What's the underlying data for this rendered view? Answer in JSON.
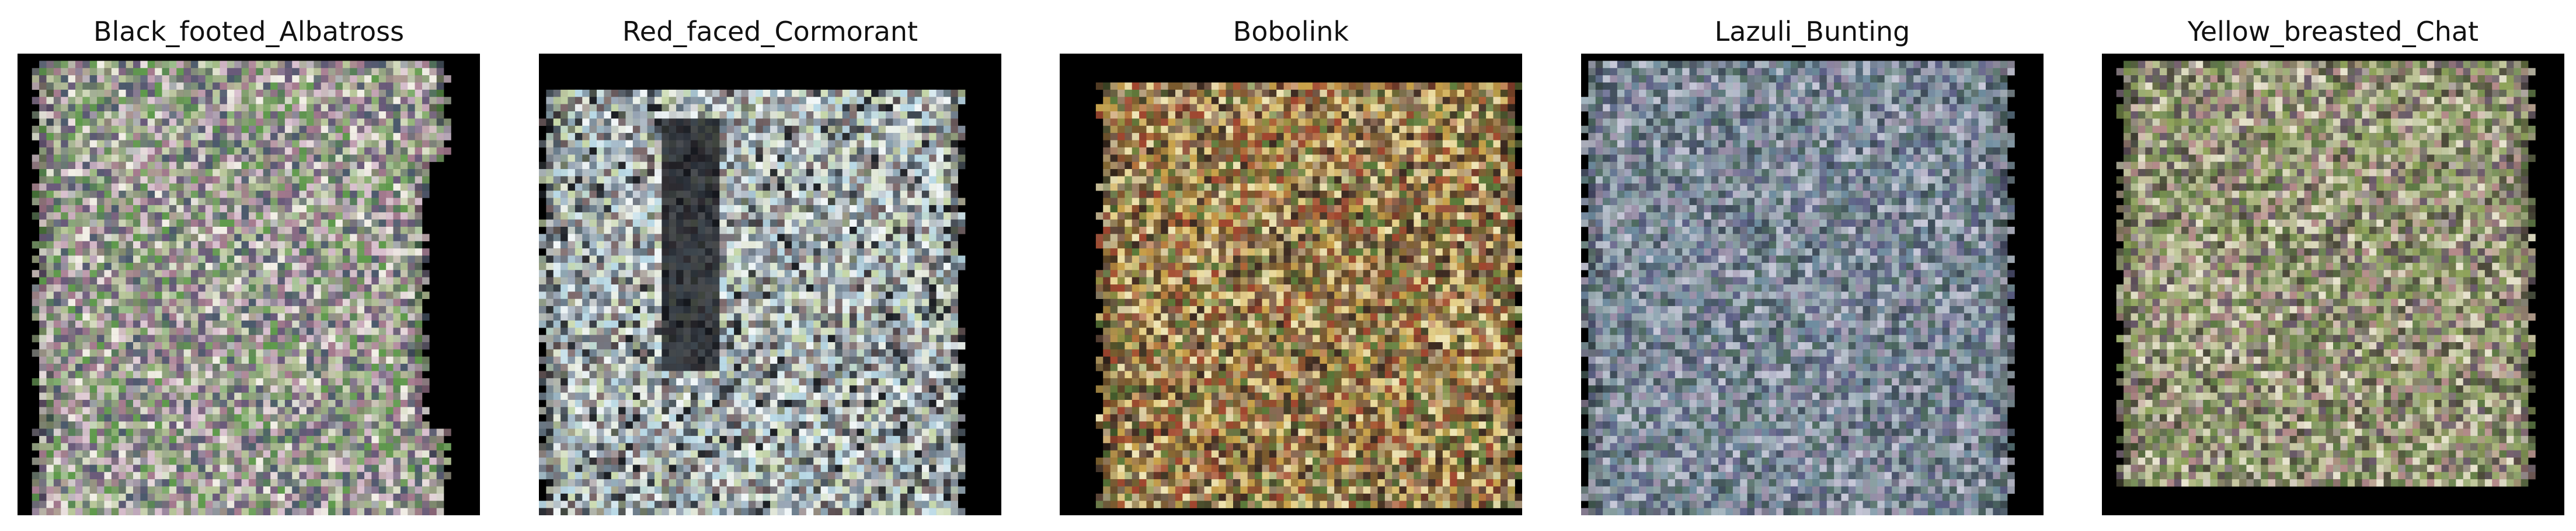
{
  "figure": {
    "panels": [
      {
        "title": "Black_footed_Albatross",
        "palette": [
          "#5f9a4c",
          "#b9c79a",
          "#d9c0cf",
          "#6a5a7a",
          "#f2efe6",
          "#8fa27c",
          "#4c5a6c",
          "#a57a8e"
        ],
        "backdrop": "#000000",
        "shape": "albatross"
      },
      {
        "title": "Red_faced_Cormorant",
        "palette": [
          "#b9d9e6",
          "#f1f6f7",
          "#6d7f8e",
          "#1c1f24",
          "#c7d8a9",
          "#9aa7b7",
          "#e4e9da",
          "#7e6a6c"
        ],
        "backdrop": "#000000",
        "shape": "cormorant"
      },
      {
        "title": "Bobolink",
        "palette": [
          "#c9a24a",
          "#e6d18a",
          "#7a5a2e",
          "#5b7a3a",
          "#a0462f",
          "#efe5b6",
          "#8a6a55",
          "#3d2b22"
        ],
        "backdrop": "#000000",
        "shape": "bobolink"
      },
      {
        "title": "Lazuli_Bunting",
        "palette": [
          "#6f8da0",
          "#a7b7c0",
          "#4e6b60",
          "#8aa0a2",
          "#c7c8d8",
          "#5c5f86",
          "#9b8fa8",
          "#3f4d5a"
        ],
        "backdrop": "#000000",
        "shape": "bunting"
      },
      {
        "title": "Yellow_breasted_Chat",
        "palette": [
          "#8fa35a",
          "#c7c7a0",
          "#5e7a45",
          "#b48a8a",
          "#e8e4cf",
          "#6a5a6a",
          "#9fb07a",
          "#4c4a3a"
        ],
        "backdrop": "#000000",
        "shape": "chat"
      }
    ]
  }
}
